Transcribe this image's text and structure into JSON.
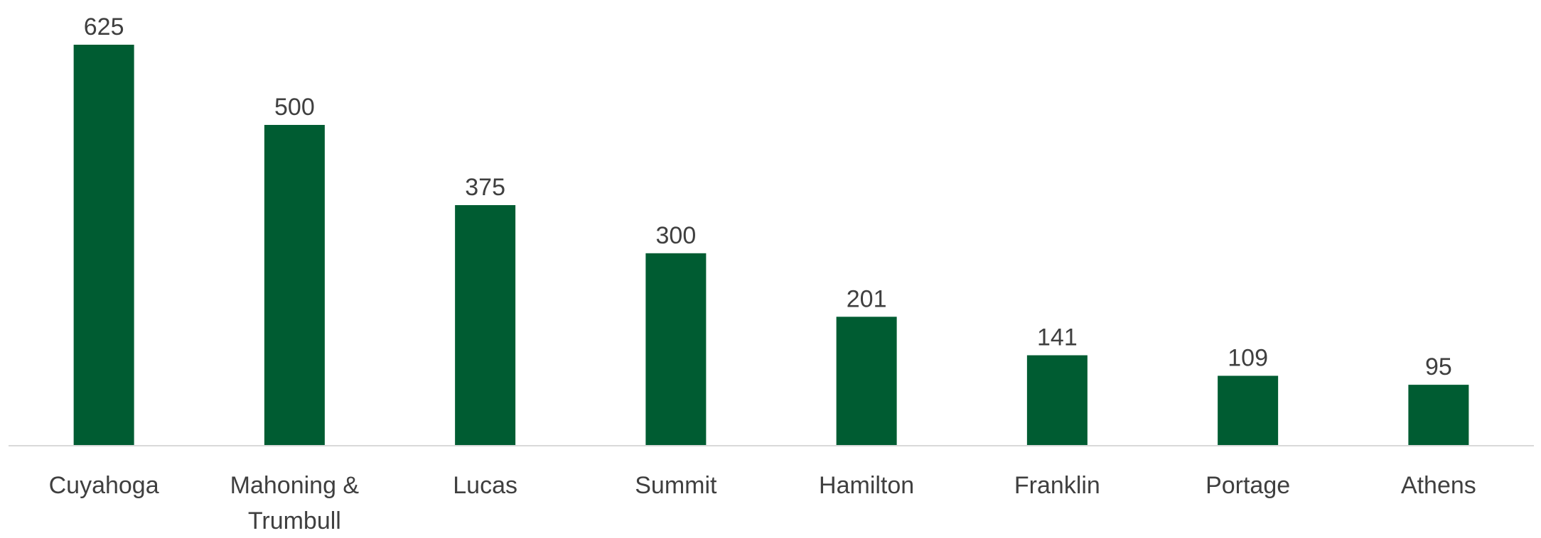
{
  "chart_data": {
    "type": "bar",
    "title": "",
    "xlabel": "",
    "ylabel": "",
    "categories": [
      [
        "Cuyahoga"
      ],
      [
        "Mahoning &",
        "Trumbull"
      ],
      [
        "Lucas"
      ],
      [
        "Summit"
      ],
      [
        "Hamilton"
      ],
      [
        "Franklin"
      ],
      [
        "Portage"
      ],
      [
        "Athens"
      ]
    ],
    "values": [
      625,
      500,
      375,
      300,
      201,
      141,
      109,
      95
    ],
    "data_labels": [
      "625",
      "500",
      "375",
      "300",
      "201",
      "141",
      "109",
      "95"
    ],
    "ylim": [
      0,
      625
    ],
    "grid": false,
    "legend": "none",
    "bar_color": "#005C32",
    "axis_color": "#D9D9D9",
    "text_color": "#404040"
  }
}
